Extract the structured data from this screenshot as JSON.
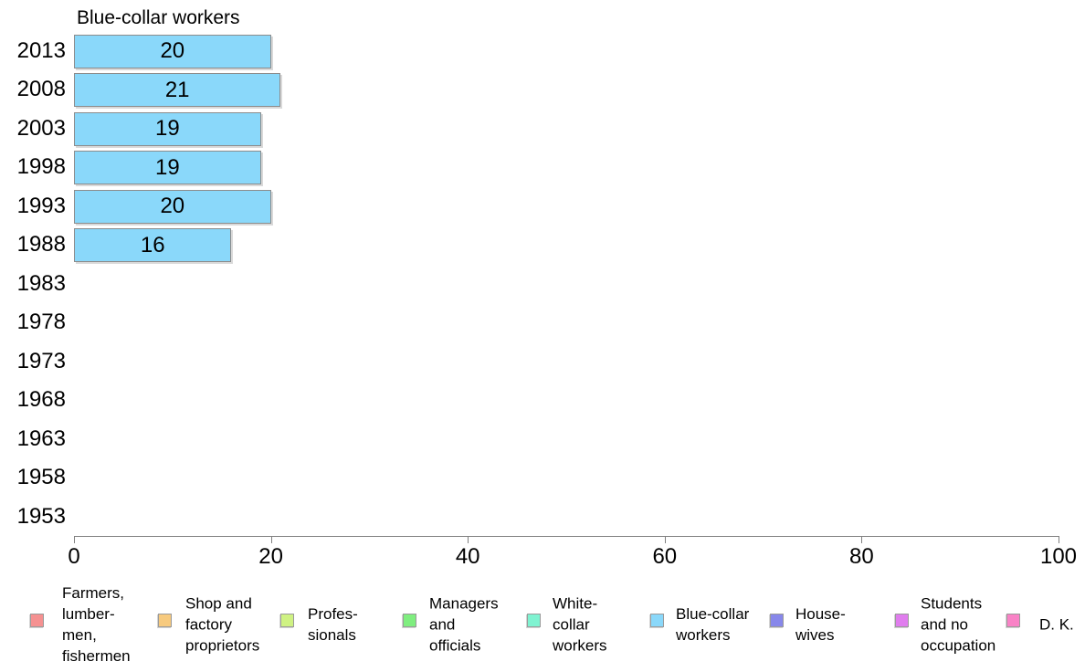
{
  "chart_data": {
    "type": "bar",
    "orientation": "horizontal",
    "title": "Blue-collar workers",
    "categories": [
      "2013",
      "2008",
      "2003",
      "1998",
      "1993",
      "1988",
      "1983",
      "1978",
      "1973",
      "1968",
      "1963",
      "1958",
      "1953"
    ],
    "values": [
      20,
      21,
      19,
      19,
      20,
      16,
      null,
      null,
      null,
      null,
      null,
      null,
      null
    ],
    "value_labels": [
      "20",
      "21",
      "19",
      "19",
      "20",
      "16",
      "",
      "",
      "",
      "",
      "",
      "",
      ""
    ],
    "xlim": [
      0,
      100
    ],
    "x_ticks": [
      0,
      20,
      40,
      60,
      80,
      100
    ],
    "x_tick_labels": [
      "0",
      "20",
      "40",
      "60",
      "80",
      "100"
    ],
    "grid": false,
    "bar_color": "#8AD8FA",
    "axis_color": "#808080",
    "legend_position": "bottom",
    "legend": [
      {
        "label": "Farmers, lumber- men, fishermen",
        "lines": [
          "Farmers,",
          "lumber-",
          "men,",
          "fishermen"
        ],
        "color": "#F59191"
      },
      {
        "label": "Shop and factory proprietors",
        "lines": [
          "Shop and",
          "factory",
          "proprietors"
        ],
        "color": "#F7CA7E"
      },
      {
        "label": "Profes- sionals",
        "lines": [
          "Profes-",
          "sionals"
        ],
        "color": "#CFF283"
      },
      {
        "label": "Managers and officials",
        "lines": [
          "Managers",
          "and",
          "officials"
        ],
        "color": "#7FEE7F"
      },
      {
        "label": "White- collar workers",
        "lines": [
          "White-",
          "collar",
          "workers"
        ],
        "color": "#7FF3D1"
      },
      {
        "label": "Blue-collar workers",
        "lines": [
          "Blue-collar",
          "workers"
        ],
        "color": "#8AD8FA"
      },
      {
        "label": "House- wives",
        "lines": [
          "House-",
          "wives"
        ],
        "color": "#8787EA"
      },
      {
        "label": "Students and no occupation",
        "lines": [
          "Students",
          "and no",
          "occupation"
        ],
        "color": "#E07DEE"
      },
      {
        "label": "D. K.",
        "lines": [
          "D. K."
        ],
        "color": "#F982C6"
      }
    ]
  }
}
